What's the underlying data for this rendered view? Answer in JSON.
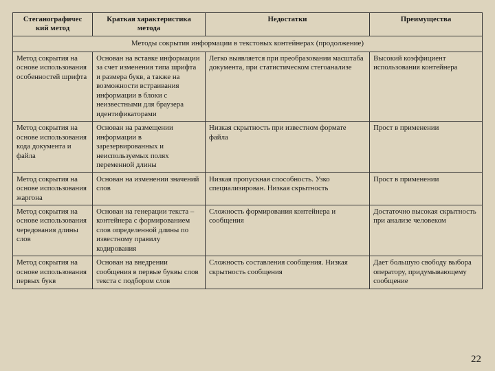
{
  "headers": {
    "c1": "Стеганографичес кий метод",
    "c2": "Краткая характеристика метода",
    "c3": "Недостатки",
    "c4": "Преимущества"
  },
  "section": "Методы сокрытия информации в текстовых контейнерах (продолжение)",
  "rows": [
    {
      "c1": "Метод сокрытия на основе использования особенностей шрифта",
      "c2": "Основан на вставке информации за счет изменения типа шрифта и размера букв, а также на возможности встраивания информации в блоки с неизвестными для браузера идентификаторами",
      "c3": "Легко выявляется при преобразовании масштаба документа, при статистическом стегоанализе",
      "c4": "Высокий коэффициент использования контейнера"
    },
    {
      "c1": "Метод сокрытия на основе использования кода документа и файла",
      "c2": "Основан на размещении информации в зарезервированных и неиспользуемых полях переменной длины",
      "c3": "Низкая скрытность при известном формате файла",
      "c4": "Прост в применении"
    },
    {
      "c1": "Метод сокрытия на основе использования жаргона",
      "c2": "Основан на изменении значений слов",
      "c3": "Низкая пропускная способность. Узко специализирован. Низкая скрытность",
      "c4": "Прост в применении"
    },
    {
      "c1": "Метод сокрытия на основе использования чередования длины слов",
      "c2": "Основан на генерации текста –контейнера с формированием слов определенной длины по известному правилу кодирования",
      "c3": "Сложность формирования контейнера и сообщения",
      "c4": "Достаточно высокая скрытность при анализе человеком"
    },
    {
      "c1": "Метод сокрытия на основе использования первых букв",
      "c2": "Основан на внедрении сообщения в первые буквы слов текста с подбором слов",
      "c3": "Сложность составления сообщения. Низкая скрытность сообщения",
      "c4": "Дает большую свободу выбора оператору, придумывающему сообщение"
    }
  ],
  "pagenum": "22"
}
